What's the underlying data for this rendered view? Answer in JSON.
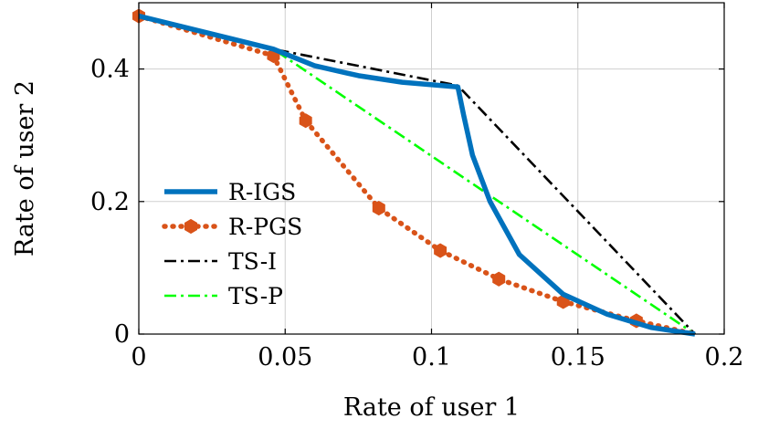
{
  "chart_data": {
    "type": "line",
    "title": "",
    "xlabel": "Rate of user 1",
    "ylabel": "Rate of user 2",
    "xlim": [
      0,
      0.2
    ],
    "ylim": [
      0,
      0.5
    ],
    "xticks": [
      0,
      0.05,
      0.1,
      0.15,
      0.2
    ],
    "xtick_labels": [
      "0",
      "0.05",
      "0.1",
      "0.15",
      "0.2"
    ],
    "yticks": [
      0,
      0.2,
      0.4
    ],
    "ytick_labels": [
      "0",
      "0.2",
      "0.4"
    ],
    "grid": true,
    "legend_position": "bottom-left",
    "series": [
      {
        "name": "R-IGS",
        "color": "#0072BD",
        "style": "solid",
        "points": [
          [
            0,
            0.48
          ],
          [
            0.046,
            0.43
          ],
          [
            0.06,
            0.405
          ],
          [
            0.075,
            0.39
          ],
          [
            0.09,
            0.38
          ],
          [
            0.109,
            0.373
          ],
          [
            0.111,
            0.33
          ],
          [
            0.114,
            0.27
          ],
          [
            0.12,
            0.2
          ],
          [
            0.13,
            0.12
          ],
          [
            0.145,
            0.06
          ],
          [
            0.16,
            0.03
          ],
          [
            0.175,
            0.01
          ],
          [
            0.19,
            0.0
          ]
        ]
      },
      {
        "name": "R-PGS",
        "color": "#D95319",
        "style": "dotted",
        "marker": "hexagon",
        "points": [
          [
            0,
            0.48
          ],
          [
            0.046,
            0.42
          ],
          [
            0.057,
            0.322
          ],
          [
            0.082,
            0.19
          ],
          [
            0.103,
            0.126
          ],
          [
            0.123,
            0.083
          ],
          [
            0.145,
            0.049
          ],
          [
            0.17,
            0.02
          ],
          [
            0.19,
            0.0
          ]
        ]
      },
      {
        "name": "TS-I",
        "color": "#000000",
        "style": "dashdot",
        "points": [
          [
            0,
            0.48
          ],
          [
            0.046,
            0.43
          ],
          [
            0.109,
            0.375
          ],
          [
            0.19,
            0.0
          ]
        ]
      },
      {
        "name": "TS-P",
        "color": "#00FF00",
        "style": "dashdot",
        "points": [
          [
            0,
            0.48
          ],
          [
            0.046,
            0.43
          ],
          [
            0.19,
            0.0
          ]
        ]
      }
    ]
  }
}
